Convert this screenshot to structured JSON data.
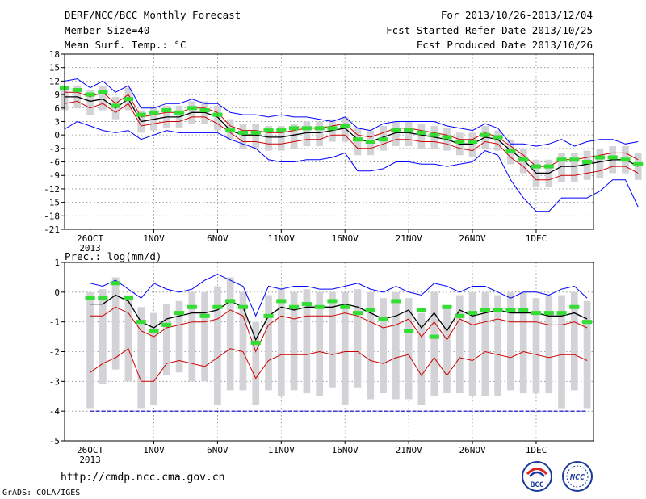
{
  "header": {
    "title": "DERF/NCC/BCC Monthly Forecast",
    "member_size": "Member Size=40",
    "variable": "Mean Surf. Temp.: °C",
    "period": "For 2013/10/26-2013/12/04",
    "start_date": "Fcst Started Refer Date 2013/10/25",
    "produced_date": "Fcst Produced Date 2013/10/26"
  },
  "footer": {
    "url": "http://cmdp.ncc.cma.gov.cn",
    "credit": "GrADS: COLA/IGES",
    "logo_bcc": "BCC",
    "logo_ncc": "NCC"
  },
  "colors": {
    "max_min": "#0000ff",
    "p25_p75": "#cc0000",
    "median": "#000000",
    "observed_marker": "#33dd33",
    "box": "#d3d3d7",
    "grid": "#888888",
    "floor_line": "#0000cc"
  },
  "chart_data": [
    {
      "type": "line",
      "title": "",
      "ylabel": "",
      "ylim": [
        -21,
        18
      ],
      "yticks": [
        18,
        15,
        12,
        9,
        6,
        3,
        0,
        -3,
        -6,
        -9,
        -12,
        -15,
        -18,
        -21
      ],
      "x_tick_labels": [
        "26OCT",
        "1NOV",
        "6NOV",
        "11NOV",
        "16NOV",
        "21NOV",
        "26NOV",
        "1DEC"
      ],
      "x_tick_days": [
        1,
        6,
        11,
        16,
        21,
        26,
        31,
        36
      ],
      "x_sublabel": "2013",
      "grid": true,
      "series": [
        {
          "role": "max",
          "values": [
            1.3,
            3,
            2,
            1,
            0.5,
            1,
            -1,
            0,
            1,
            0.5,
            0.5,
            0.5,
            0.5,
            -1,
            -2,
            -3,
            -5.5,
            -6,
            -6,
            -5.5,
            -5.5,
            -5,
            -4,
            -8,
            -8,
            -7.5,
            -6,
            -6,
            -6.5,
            -6.5,
            -7,
            -6.5,
            -6,
            -3.5,
            -4.5,
            -10,
            -14,
            -17,
            -17,
            -14,
            -14,
            -14,
            -12.5,
            -10,
            -10,
            -16
          ]
        },
        {
          "role": "p25",
          "values": [
            7,
            7.5,
            6,
            7,
            5,
            7,
            2,
            2.5,
            3,
            3,
            4,
            4,
            2.5,
            0.5,
            -1.5,
            -1.5,
            -2,
            -2,
            -1.5,
            -1,
            -1,
            0,
            0,
            -3,
            -3,
            -2,
            -1,
            -1,
            -1.5,
            -1.5,
            -2,
            -3,
            -3.5,
            -1.5,
            -2,
            -5,
            -7,
            -10,
            -10,
            -9,
            -9,
            -8.5,
            -8,
            -7,
            -7,
            -8.5
          ]
        },
        {
          "role": "median",
          "values": [
            8.5,
            8.5,
            7.5,
            8,
            6,
            8,
            3,
            3.5,
            4,
            4,
            5,
            5,
            4,
            1,
            0,
            0,
            -0.5,
            -0.5,
            0,
            0.5,
            0.5,
            1,
            1.5,
            -1,
            -1.5,
            -0.5,
            0.5,
            0.5,
            0,
            -0.5,
            -1,
            -2,
            -2,
            -0.5,
            -1,
            -3.5,
            -5.5,
            -8.5,
            -8.5,
            -7,
            -7,
            -6.5,
            -6,
            -5.5,
            -5.5,
            -7
          ]
        },
        {
          "role": "p75",
          "values": [
            9.5,
            9.5,
            8.5,
            9.5,
            7,
            9,
            4,
            4.5,
            5,
            5,
            6,
            6,
            5,
            2,
            1,
            1,
            0.5,
            0.5,
            1,
            1.5,
            1.5,
            2,
            2.5,
            0,
            -0.5,
            0.5,
            1.5,
            1.5,
            1,
            0.5,
            0,
            -1,
            -1,
            0.5,
            -0.5,
            -2.5,
            -4.5,
            -7,
            -7,
            -5.5,
            -5.5,
            -5,
            -4.5,
            -4,
            -4,
            -5.5
          ]
        },
        {
          "role": "min",
          "values": [
            12,
            12.5,
            10.5,
            12,
            9.5,
            11,
            6,
            6,
            7,
            7,
            8,
            7,
            7,
            5,
            4.5,
            4.5,
            4,
            4.5,
            4,
            4,
            3.5,
            3,
            4,
            1.5,
            1,
            2.5,
            3,
            3,
            3,
            3,
            2,
            1.5,
            1,
            2.5,
            1.5,
            -2,
            -2,
            -2.5,
            -2,
            -1,
            -2.5,
            -1.5,
            -1,
            -1,
            -2,
            -1.5
          ]
        },
        {
          "role": "observed",
          "values": [
            10.5,
            10,
            9,
            9.5,
            6.5,
            8,
            4.5,
            5,
            5.5,
            5,
            6,
            5.5,
            4.5,
            1,
            0.5,
            0.5,
            1,
            1,
            1.5,
            1.5,
            1.5,
            1.5,
            2,
            -1,
            -1.5,
            -1,
            1,
            1,
            0.5,
            0,
            -0.5,
            -1.5,
            -1.5,
            0,
            -0.5,
            -3.5,
            -5.5,
            -7,
            -7,
            -5.5,
            -5.5,
            -6,
            -5,
            -5,
            -5.5,
            -6.5
          ]
        }
      ]
    },
    {
      "type": "line",
      "title": "Prec.: log(mm/d)",
      "ylabel": "",
      "ylim": [
        -5,
        1.2
      ],
      "yticks": [
        1,
        0,
        -1,
        -2,
        -3,
        -4,
        -5
      ],
      "x_tick_labels": [
        "26OCT",
        "1NOV",
        "6NOV",
        "11NOV",
        "16NOV",
        "21NOV",
        "26NOV",
        "1DEC"
      ],
      "x_tick_days": [
        1,
        6,
        11,
        16,
        21,
        26,
        31,
        36
      ],
      "x_sublabel": "2013",
      "grid": true,
      "floor_value": -4,
      "series": [
        {
          "role": "max",
          "values": [
            0.3,
            0.2,
            0.4,
            0.1,
            -0.2,
            0.3,
            0.1,
            0,
            0.1,
            0.4,
            0.6,
            0.4,
            0.2,
            -0.8,
            0.2,
            0.1,
            0.2,
            0.2,
            0.1,
            0.1,
            0.2,
            0.3,
            0.1,
            0,
            0.2,
            0,
            -0.1,
            0.3,
            0.2,
            0,
            0.2,
            0.2,
            0,
            -0.2,
            0,
            0,
            -0.1,
            0.1,
            0.2,
            -0.2
          ]
        },
        {
          "role": "median",
          "values": [
            -0.4,
            -0.4,
            -0.1,
            -0.3,
            -1,
            -1.2,
            -0.9,
            -0.8,
            -0.7,
            -0.7,
            -0.6,
            -0.3,
            -0.5,
            -1.6,
            -0.8,
            -0.5,
            -0.6,
            -0.5,
            -0.5,
            -0.5,
            -0.4,
            -0.5,
            -0.7,
            -0.9,
            -0.8,
            -0.6,
            -1.2,
            -0.7,
            -1.3,
            -0.6,
            -0.8,
            -0.7,
            -0.6,
            -0.7,
            -0.7,
            -0.7,
            -0.8,
            -0.8,
            -0.7,
            -0.9
          ]
        },
        {
          "role": "p75",
          "values": [
            -0.8,
            -0.8,
            -0.5,
            -0.7,
            -1.3,
            -1.5,
            -1.2,
            -1.1,
            -1,
            -1,
            -0.9,
            -0.6,
            -0.8,
            -2,
            -1.1,
            -0.8,
            -0.9,
            -0.8,
            -0.8,
            -0.8,
            -0.7,
            -0.8,
            -1,
            -1.2,
            -1.1,
            -0.9,
            -1.5,
            -1,
            -1.6,
            -0.9,
            -1.1,
            -1,
            -0.9,
            -1,
            -1,
            -1,
            -1.1,
            -1.1,
            -1,
            -1.2
          ]
        },
        {
          "role": "p25",
          "values": [
            -2.7,
            -2.4,
            -2.2,
            -1.9,
            -3,
            -3,
            -2.4,
            -2.3,
            -2.4,
            -2.5,
            -2.2,
            -1.9,
            -2,
            -2.9,
            -2.3,
            -2.1,
            -2.1,
            -2.1,
            -2,
            -2.1,
            -2,
            -2,
            -2.3,
            -2.4,
            -2.2,
            -2.1,
            -2.8,
            -2.2,
            -2.8,
            -2.2,
            -2.3,
            -2,
            -2.1,
            -2.2,
            -2,
            -2.1,
            -2.2,
            -2.1,
            -2.1,
            -2.3
          ]
        },
        {
          "role": "min",
          "values": [
            -4,
            -4,
            -4,
            -4,
            -4,
            -4,
            -4,
            -4,
            -4,
            -4,
            -4,
            -4,
            -4,
            -4,
            -4,
            -4,
            -4,
            -4,
            -4,
            -4,
            -4,
            -4,
            -4,
            -4,
            -4,
            -4,
            -4,
            -4,
            -4,
            -4,
            -4,
            -4,
            -4,
            -4,
            -4,
            -4,
            -4,
            -4,
            -4,
            -4
          ]
        },
        {
          "role": "observed",
          "values": [
            -0.2,
            -0.2,
            0.3,
            -0.2,
            -1,
            -1.3,
            -1.1,
            -0.7,
            -0.5,
            -0.8,
            -0.5,
            -0.3,
            -0.5,
            -1.7,
            -0.8,
            -0.3,
            -0.5,
            -0.4,
            -0.5,
            -0.3,
            -0.5,
            -0.7,
            -0.6,
            -0.9,
            -0.3,
            -1.3,
            -0.6,
            -1.5,
            -0.5,
            -0.8,
            -0.7,
            -0.6,
            -0.6,
            -0.6,
            -0.6,
            -0.7,
            -0.7,
            -0.7,
            -0.5,
            -1
          ]
        },
        {
          "role": "box_top",
          "values": [
            0,
            0.1,
            0.5,
            -0.1,
            -0.5,
            -0.7,
            -0.4,
            -0.3,
            0,
            0,
            0.2,
            0.5,
            0,
            -1,
            -0.1,
            0.1,
            0,
            0.1,
            0,
            0,
            0,
            0.1,
            0,
            -0.2,
            0,
            -0.2,
            -0.7,
            0,
            -0.5,
            -0.1,
            0,
            0,
            -0.1,
            0,
            0,
            -0.2,
            -0.1,
            -0.1,
            0,
            -0.3
          ]
        },
        {
          "role": "box_bottom",
          "values": [
            -3.9,
            -3.1,
            -2.6,
            -3,
            -3.9,
            -3.8,
            -2.8,
            -2.7,
            -3,
            -3,
            -3.8,
            -3.3,
            -3.3,
            -3.8,
            -3.3,
            -3.5,
            -3.3,
            -3.4,
            -3.5,
            -3.2,
            -3.8,
            -3.2,
            -3.6,
            -3.4,
            -3.6,
            -3.6,
            -3.8,
            -3.5,
            -3.4,
            -3.4,
            -3.5,
            -3.5,
            -3.5,
            -3.3,
            -3.4,
            -3.4,
            -3.4,
            -3.9,
            -3.3,
            -3.9
          ]
        }
      ]
    }
  ]
}
